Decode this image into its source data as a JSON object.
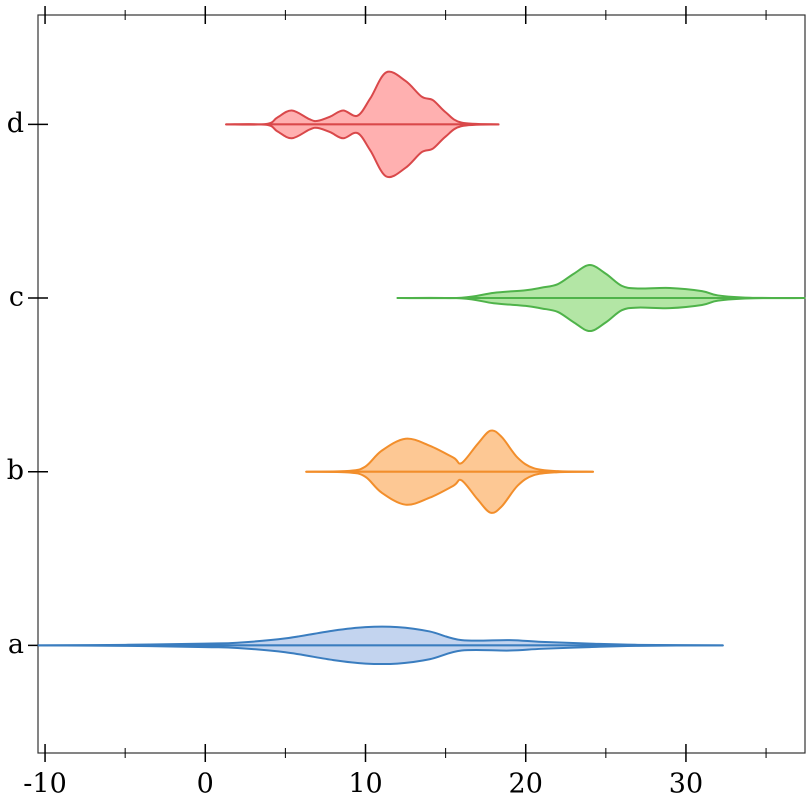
{
  "chart_data": {
    "type": "violin",
    "orientation": "horizontal",
    "categories": [
      "a",
      "b",
      "c",
      "d"
    ],
    "xlim": [
      -10.44,
      37.43
    ],
    "xticks": [
      -10,
      0,
      10,
      20,
      30
    ],
    "xminorticks": [
      -5,
      5,
      15,
      25,
      35
    ],
    "ylim": [
      -0.62,
      3.63
    ],
    "series": [
      {
        "name": "a",
        "color": "#3a7dbf",
        "fill": "#c3d4ef",
        "x": [
          -10.4,
          -5,
          0,
          2,
          5,
          8,
          10,
          12,
          14,
          16,
          19,
          21,
          24,
          27,
          32.3
        ],
        "widths": [
          0,
          0.003,
          0.01,
          0.015,
          0.04,
          0.085,
          0.105,
          0.105,
          0.08,
          0.03,
          0.03,
          0.02,
          0.01,
          0.003,
          0
        ]
      },
      {
        "name": "b",
        "color": "#f28e2b",
        "fill": "#fdc894",
        "x": [
          6.3,
          9,
          10,
          11,
          12.5,
          14,
          15.5,
          16,
          17,
          17.8,
          18.5,
          19.5,
          20.5,
          22,
          24.2
        ],
        "widths": [
          0,
          0.005,
          0.03,
          0.12,
          0.19,
          0.15,
          0.08,
          0.05,
          0.16,
          0.236,
          0.2,
          0.08,
          0.02,
          0.003,
          0
        ]
      },
      {
        "name": "c",
        "color": "#4fb34a",
        "fill": "#b3e6a5",
        "x": [
          12,
          16,
          18,
          20,
          21,
          22,
          23,
          24,
          25,
          26,
          27,
          29,
          31,
          32,
          34,
          37.4
        ],
        "widths": [
          0,
          0.002,
          0.03,
          0.045,
          0.06,
          0.08,
          0.14,
          0.19,
          0.14,
          0.07,
          0.055,
          0.058,
          0.04,
          0.015,
          0.002,
          0
        ]
      },
      {
        "name": "d",
        "color": "#d9484a",
        "fill": "#ffb0b0",
        "x": [
          1.3,
          3.8,
          4.5,
          5.4,
          6.5,
          7,
          7.8,
          8.6,
          9.5,
          10.3,
          11.3,
          12.5,
          13.5,
          14.2,
          15,
          16,
          18.3
        ],
        "widths": [
          0,
          0.002,
          0.04,
          0.08,
          0.03,
          0.02,
          0.045,
          0.08,
          0.05,
          0.15,
          0.3,
          0.25,
          0.16,
          0.14,
          0.07,
          0.01,
          0
        ]
      }
    ]
  }
}
